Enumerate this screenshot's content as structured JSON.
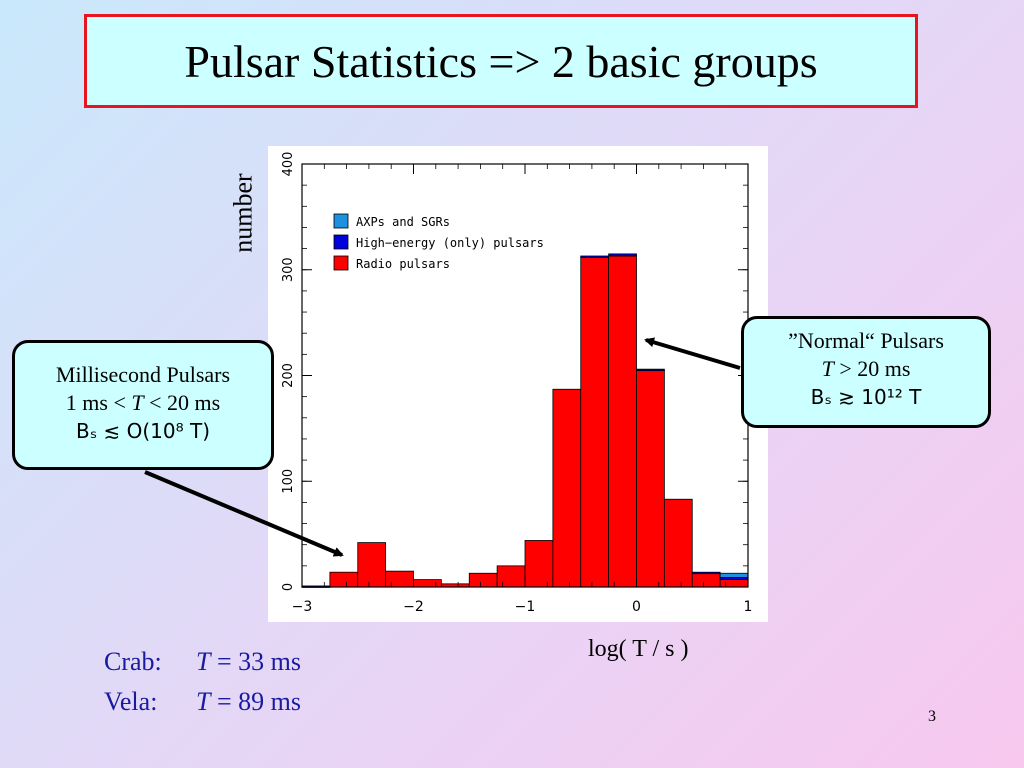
{
  "slide": {
    "title": "Pulsar Statistics => 2 basic groups",
    "ylabel": "number",
    "xlabel": "log( T / s )",
    "page_number": "3"
  },
  "callouts": {
    "millisecond": {
      "title": "Millisecond Pulsars",
      "range_pre": "1 ms < ",
      "range_var": "T",
      "range_post": " < 20 ms",
      "formula": "Bₛ ≲ O(10⁸ T)"
    },
    "normal": {
      "title": "”Normal“ Pulsars",
      "range_var": "T",
      "range_post": " > 20 ms",
      "formula": "Bₛ ≳ 10¹² T"
    }
  },
  "examples": [
    {
      "label": "Crab:",
      "var": "T",
      "value": " = 33 ms"
    },
    {
      "label": "Vela:",
      "var": "T",
      "value": " = 89 ms"
    }
  ],
  "chart_data": {
    "type": "bar",
    "subtype": "histogram",
    "xlim": [
      -3,
      1
    ],
    "ylim": [
      0,
      400
    ],
    "xticks": [
      -3,
      -2,
      -1,
      0,
      1
    ],
    "yticks": [
      0,
      100,
      200,
      300,
      400
    ],
    "bin_width": 0.25,
    "bin_edges": [
      -3,
      -2.75,
      -2.5,
      -2.25,
      -2,
      -1.75,
      -1.5,
      -1.25,
      -1,
      -0.75,
      -0.5,
      -0.25,
      0,
      0.25,
      0.5,
      0.75,
      1
    ],
    "legend_position": "top-left",
    "colors": {
      "radio": "#ff0000",
      "high_energy": "#0000dd",
      "axp": "#1e90e0"
    },
    "series": [
      {
        "name": "AXPs and SGRs",
        "values": [
          0,
          0,
          0,
          0,
          0,
          0,
          0,
          0,
          0,
          0,
          0,
          0,
          0,
          0,
          0,
          4
        ]
      },
      {
        "name": "High−energy (only) pulsars",
        "values": [
          1,
          0,
          0,
          0,
          0,
          0,
          0,
          0,
          0,
          0,
          1,
          2,
          1,
          0,
          1,
          2
        ]
      },
      {
        "name": "Radio pulsars",
        "values": [
          0,
          14,
          42,
          15,
          7,
          3,
          13,
          20,
          44,
          187,
          312,
          313,
          205,
          83,
          13,
          7
        ]
      }
    ]
  }
}
